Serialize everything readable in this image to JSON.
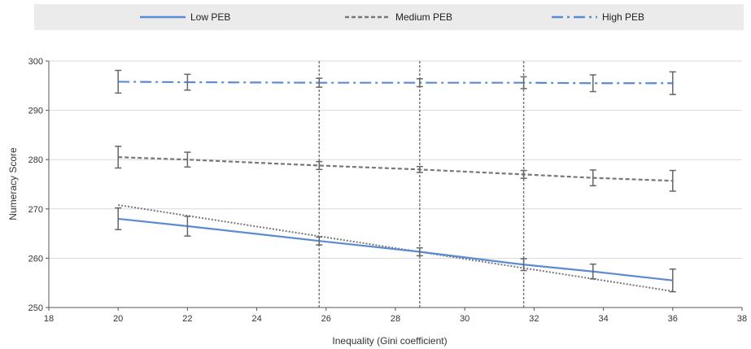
{
  "chart_data": {
    "type": "line",
    "x": [
      20,
      22,
      25.8,
      28.7,
      31.7,
      33.7,
      36
    ],
    "xlabel": "Inequality (Gini coefficient)",
    "ylabel": "Numeracy Score",
    "xlim": [
      18,
      38
    ],
    "ylim": [
      250,
      300
    ],
    "xticks": [
      18,
      20,
      22,
      24,
      26,
      28,
      30,
      32,
      34,
      36,
      38
    ],
    "yticks": [
      250,
      260,
      270,
      280,
      290,
      300
    ],
    "grid": "horizontal",
    "legend_position": "top",
    "vertical_reference_lines": [
      25.8,
      28.7,
      31.7
    ],
    "series": [
      {
        "name": "Low PEB",
        "style": "solid",
        "color": "#5b8bd0",
        "values": [
          268,
          266.5,
          263.5,
          261.3,
          258.7,
          257.3,
          255.5
        ],
        "error": [
          2.2,
          2.0,
          0.8,
          0.8,
          1.2,
          1.5,
          2.3
        ]
      },
      {
        "name": "Medium PEB",
        "style": "dashed",
        "color": "#777777",
        "values": [
          280.5,
          280,
          278.8,
          278,
          277,
          276.3,
          275.7
        ],
        "error": [
          2.2,
          1.5,
          0.8,
          0.6,
          0.8,
          1.6,
          2.1
        ]
      },
      {
        "name": "High PEB",
        "style": "dashdot",
        "color": "#5b8bd0",
        "values": [
          295.8,
          295.7,
          295.6,
          295.6,
          295.6,
          295.5,
          295.5
        ],
        "error": [
          2.3,
          1.6,
          0.9,
          0.8,
          1.2,
          1.7,
          2.3
        ]
      }
    ],
    "fitted_line": {
      "style": "dotted",
      "color": "#777777",
      "x": [
        20,
        36
      ],
      "y": [
        270.8,
        253.3
      ]
    },
    "legend": {
      "items": [
        {
          "label": "Low PEB",
          "style": "solid"
        },
        {
          "label": "Medium PEB",
          "style": "dashed"
        },
        {
          "label": "High PEB",
          "style": "dashdot"
        }
      ]
    }
  }
}
